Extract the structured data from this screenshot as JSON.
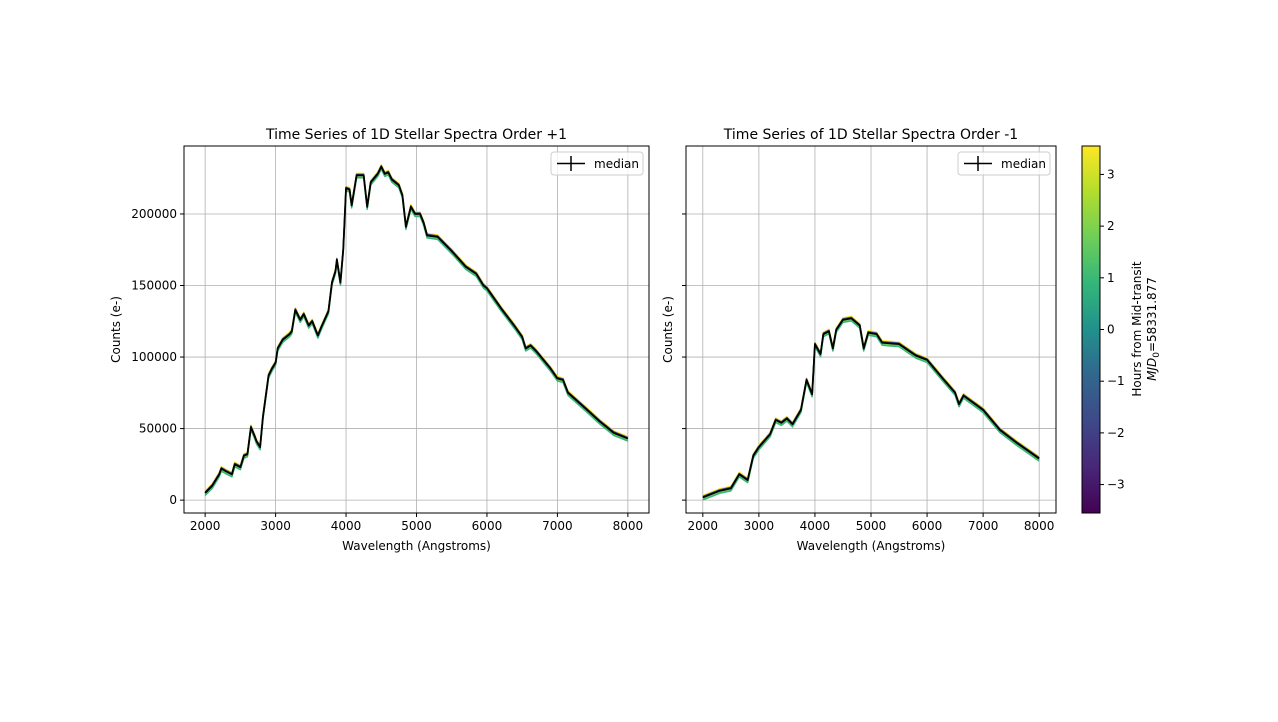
{
  "chart_data": [
    {
      "type": "line",
      "title": "Time Series of 1D Stellar Spectra Order +1",
      "xlabel": "Wavelength (Angstroms)",
      "ylabel": "Counts (e-)",
      "xlim": [
        1700,
        8300
      ],
      "ylim": [
        -9000,
        247500
      ],
      "xticks": [
        2000,
        3000,
        4000,
        5000,
        6000,
        7000,
        8000
      ],
      "yticks": [
        0,
        50000,
        100000,
        150000,
        200000
      ],
      "ytick_labels_visible": true,
      "grid": true,
      "legend": {
        "placement": "top-right",
        "entries": [
          "median"
        ]
      },
      "series": [
        {
          "name": "median",
          "color": "#000000",
          "x": [
            2000,
            2100,
            2200,
            2230,
            2300,
            2380,
            2420,
            2500,
            2550,
            2600,
            2650,
            2700,
            2730,
            2780,
            2820,
            2900,
            2950,
            3000,
            3030,
            3100,
            3200,
            3230,
            3280,
            3350,
            3400,
            3470,
            3520,
            3600,
            3650,
            3750,
            3800,
            3850,
            3870,
            3920,
            3960,
            4000,
            4050,
            4080,
            4150,
            4250,
            4300,
            4350,
            4450,
            4500,
            4550,
            4600,
            4650,
            4750,
            4800,
            4850,
            4920,
            4980,
            5050,
            5100,
            5150,
            5300,
            5500,
            5700,
            5850,
            5950,
            6000,
            6200,
            6400,
            6500,
            6550,
            6620,
            6700,
            6900,
            7000,
            7080,
            7150,
            7400,
            7600,
            7800,
            8000
          ],
          "y": [
            5000,
            10000,
            18000,
            22000,
            20000,
            18000,
            25000,
            23000,
            31000,
            32000,
            51000,
            45000,
            41000,
            37000,
            58000,
            87000,
            92000,
            96000,
            106000,
            112000,
            116000,
            118000,
            133000,
            126000,
            130000,
            122000,
            125000,
            115000,
            121000,
            132000,
            152000,
            160000,
            168000,
            152000,
            175000,
            218000,
            217000,
            206000,
            227000,
            227000,
            205000,
            222000,
            228000,
            233000,
            228000,
            229000,
            224000,
            220000,
            213000,
            191000,
            205000,
            200000,
            200000,
            194000,
            185000,
            184000,
            174000,
            163000,
            158000,
            150000,
            148000,
            134000,
            121000,
            114000,
            106000,
            108000,
            104000,
            92000,
            85000,
            84000,
            75000,
            64000,
            55000,
            47000,
            43000
          ]
        }
      ]
    },
    {
      "type": "line",
      "title": "Time Series of 1D Stellar Spectra Order -1",
      "xlabel": "Wavelength (Angstroms)",
      "ylabel": "Counts (e-)",
      "xlim": [
        1700,
        8300
      ],
      "ylim": [
        -9000,
        247500
      ],
      "xticks": [
        2000,
        3000,
        4000,
        5000,
        6000,
        7000,
        8000
      ],
      "yticks": [
        0,
        50000,
        100000,
        150000,
        200000
      ],
      "ytick_labels_visible": false,
      "grid": true,
      "legend": {
        "placement": "top-right",
        "entries": [
          "median"
        ]
      },
      "series": [
        {
          "name": "median",
          "color": "#000000",
          "x": [
            2000,
            2300,
            2500,
            2650,
            2800,
            2900,
            3000,
            3200,
            3300,
            3400,
            3500,
            3600,
            3750,
            3850,
            3950,
            4000,
            4100,
            4150,
            4250,
            4320,
            4380,
            4500,
            4650,
            4800,
            4870,
            4950,
            5100,
            5200,
            5500,
            5800,
            6000,
            6300,
            6500,
            6570,
            6650,
            7000,
            7300,
            7600,
            8000
          ],
          "y": [
            1900,
            6500,
            8200,
            18000,
            14000,
            31000,
            37000,
            46000,
            56000,
            54000,
            57000,
            53000,
            63000,
            84000,
            74000,
            109000,
            102000,
            116000,
            118000,
            106000,
            119000,
            126000,
            127000,
            122000,
            106000,
            117000,
            116000,
            110000,
            109000,
            101000,
            98000,
            84000,
            75000,
            67000,
            73000,
            63000,
            49000,
            40000,
            29000
          ]
        }
      ]
    }
  ],
  "colorbar": {
    "label": "Hours from Mid-transit",
    "label2_prefix": "MJD",
    "label2_sub": "0",
    "label2_suffix": "=58331.877",
    "colormap": "viridis",
    "range": [
      -3.55,
      3.55
    ],
    "ticks": [
      3,
      2,
      1,
      0,
      -1,
      -2,
      -3
    ],
    "tick_labels": [
      "3",
      "2",
      "1",
      "0",
      "−1",
      "−2",
      "−3"
    ]
  }
}
